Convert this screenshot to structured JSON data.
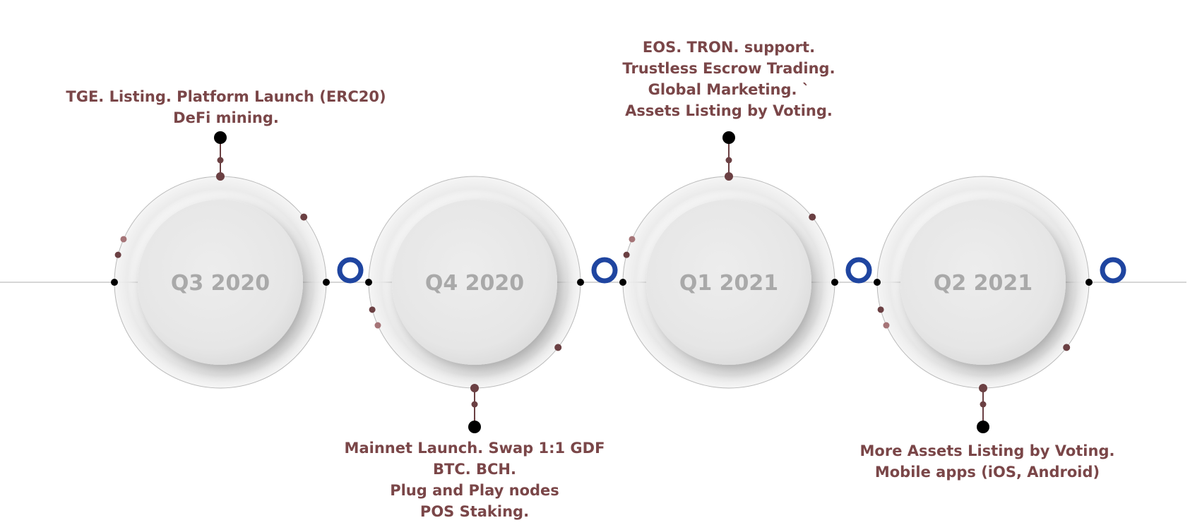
{
  "colors": {
    "text": "#7a4648",
    "quarter_label": "#a9a9a9",
    "axis_line": "#c8c8c8",
    "connector_dot_dark": "#000000",
    "connector_dot_mid": "#6b4043",
    "connector_dot_light": "#a57477",
    "accent_ring": "#1f45a0",
    "circle_fill": "#e8e8e8"
  },
  "milestones": [
    {
      "quarter": "Q3 2020",
      "lines": [
        "TGE. Listing. Platform Launch (ERC20)",
        "DeFi mining."
      ]
    },
    {
      "quarter": "Q4 2020",
      "lines": [
        "Mainnet Launch. Swap 1:1 GDF",
        "BTC. BCH.",
        "Plug and Play nodes",
        "POS Staking."
      ]
    },
    {
      "quarter": "Q1 2021",
      "lines": [
        "EOS. TRON. support.",
        "Trustless Escrow Trading.",
        "Global Marketing. `",
        "Assets Listing by Voting."
      ]
    },
    {
      "quarter": "Q2 2021",
      "lines": [
        "More Assets Listing by Voting.",
        "Mobile apps (iOS, Android)"
      ]
    }
  ],
  "icons": {
    "connector_ring": "ring-icon"
  }
}
